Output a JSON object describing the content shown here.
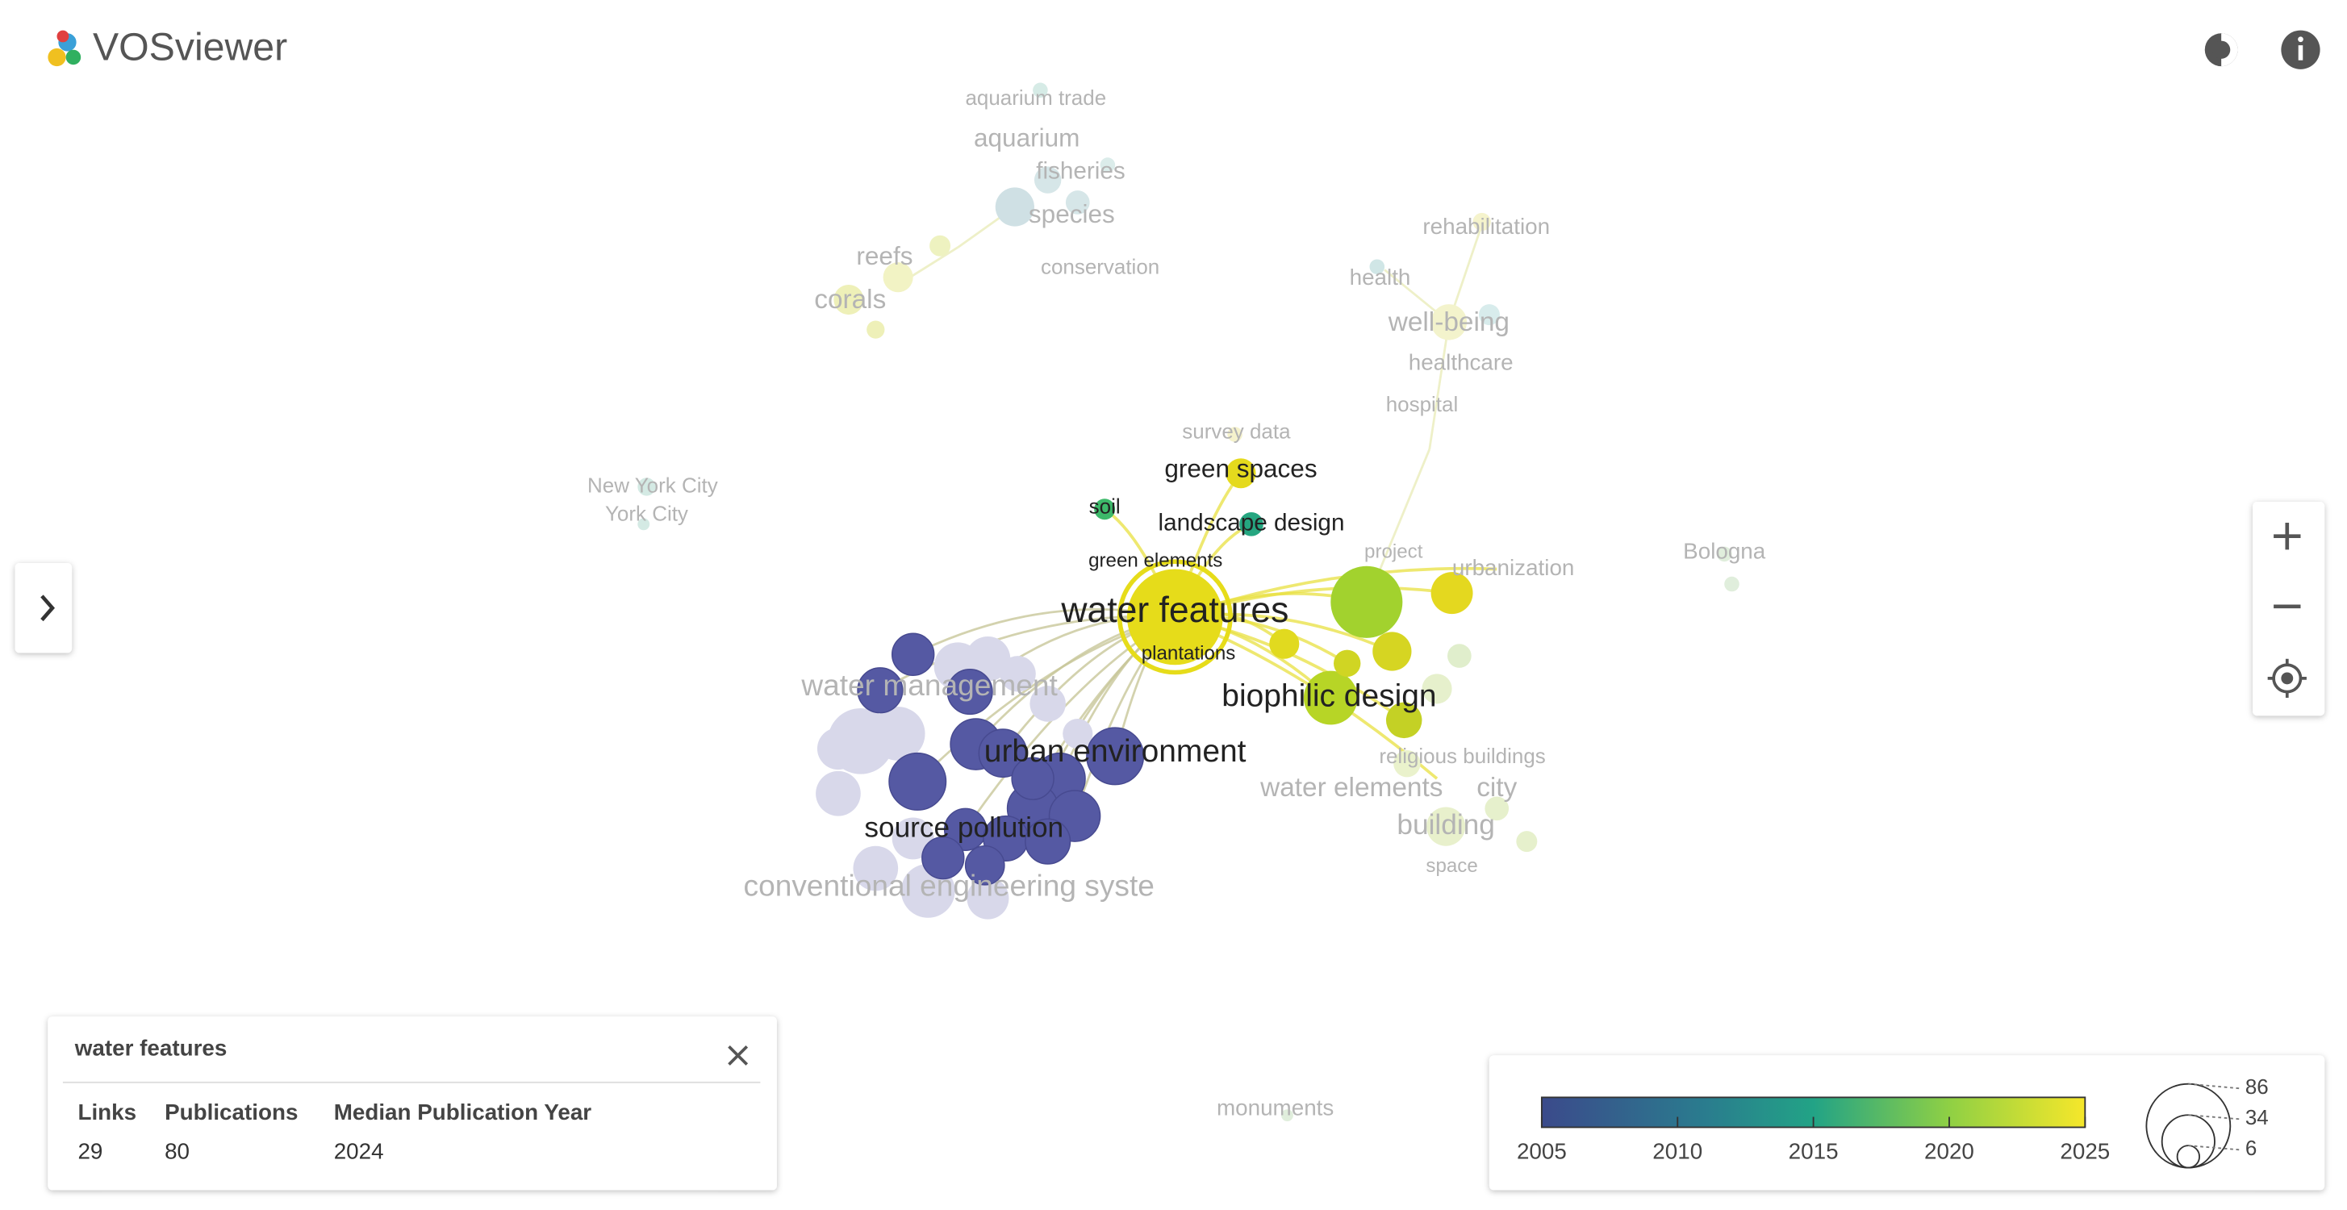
{
  "app": {
    "title": "VOSviewer"
  },
  "nodes": [
    {
      "label": "aquarium trade"
    },
    {
      "label": "aquarium"
    },
    {
      "label": "fisheries"
    },
    {
      "label": "species"
    },
    {
      "label": "conservation"
    },
    {
      "label": "reefs"
    },
    {
      "label": "corals"
    },
    {
      "label": "rehabilitation"
    },
    {
      "label": "health"
    },
    {
      "label": "well-being"
    },
    {
      "label": "healthcare"
    },
    {
      "label": "hospital"
    },
    {
      "label": "survey data"
    },
    {
      "label": "green spaces"
    },
    {
      "label": "soil"
    },
    {
      "label": "landscape design"
    },
    {
      "label": "green elements"
    },
    {
      "label": "New York City"
    },
    {
      "label": "York City"
    },
    {
      "label": "project"
    },
    {
      "label": "urbanization"
    },
    {
      "label": "Bologna"
    },
    {
      "label": "water features"
    },
    {
      "label": "plantations"
    },
    {
      "label": "water management"
    },
    {
      "label": "biophilic design"
    },
    {
      "label": "urban environment"
    },
    {
      "label": "religious buildings"
    },
    {
      "label": "water elements"
    },
    {
      "label": "city"
    },
    {
      "label": "building"
    },
    {
      "label": "space"
    },
    {
      "label": "source pollution"
    },
    {
      "label": "conventional engineering syste"
    },
    {
      "label": "monuments"
    }
  ],
  "details": {
    "title": "water features",
    "headers": [
      "Links",
      "Publications",
      "Median Publication Year"
    ],
    "values": [
      29,
      80,
      2024
    ]
  },
  "legend": {
    "color_ticks": [
      2005,
      2010,
      2015,
      2020,
      2025
    ],
    "size_ticks": [
      86,
      34,
      6
    ]
  }
}
